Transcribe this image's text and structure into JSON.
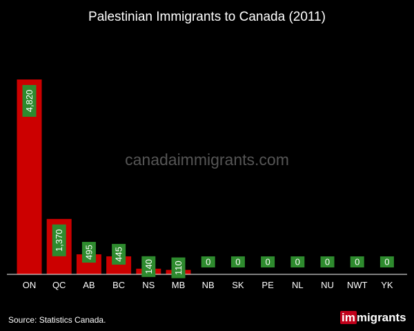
{
  "chart_data": {
    "type": "bar",
    "title": "Palestinian Immigrants to Canada (2011)",
    "categories": [
      "ON",
      "QC",
      "AB",
      "BC",
      "NS",
      "MB",
      "NB",
      "SK",
      "PE",
      "NL",
      "NU",
      "NWT",
      "YK"
    ],
    "values": [
      4820,
      1370,
      495,
      445,
      140,
      110,
      0,
      0,
      0,
      0,
      0,
      0,
      0
    ],
    "labels": [
      "4,820",
      "1,370",
      "495",
      "445",
      "140",
      "110",
      "0",
      "0",
      "0",
      "0",
      "0",
      "0",
      "0"
    ],
    "ylim": [
      0,
      5000
    ],
    "grid": false,
    "legend": "none",
    "bar_color": "#cc0000",
    "label_bg_color": "#2e8b2e"
  },
  "watermark": "canadaimmigrants.com",
  "source": "Source: Statistics Canada.",
  "logo": {
    "mark": "im",
    "rest": "migrants"
  }
}
